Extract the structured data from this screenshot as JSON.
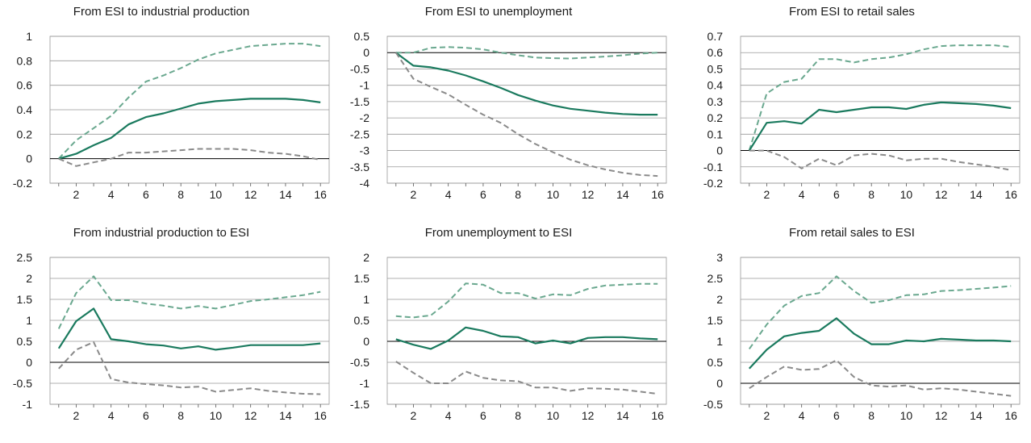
{
  "colors": {
    "median": "#1a7a5e",
    "upper_band": "#6aa88f",
    "lower_band": "#8a8a8a",
    "grid": "#999999",
    "zero_line": "#000000"
  },
  "chart_data": [
    {
      "type": "line",
      "title": "From ESI to industrial production",
      "x": [
        1,
        2,
        3,
        4,
        5,
        6,
        7,
        8,
        9,
        10,
        11,
        12,
        13,
        14,
        15,
        16
      ],
      "x_ticks": [
        2,
        4,
        6,
        8,
        10,
        12,
        14,
        16
      ],
      "y_ticks": [
        -0.2,
        0,
        0.2,
        0.4,
        0.6,
        0.8,
        1
      ],
      "y_tick_labels": [
        "-0.2",
        "0",
        "0.2",
        "0.4",
        "0.6",
        "0.8",
        "1"
      ],
      "ylim": [
        -0.2,
        1
      ],
      "series": [
        {
          "role": "upper",
          "style": "dashed",
          "values": [
            0,
            0.15,
            0.25,
            0.35,
            0.5,
            0.63,
            0.68,
            0.74,
            0.81,
            0.86,
            0.89,
            0.92,
            0.93,
            0.94,
            0.94,
            0.92
          ]
        },
        {
          "role": "median",
          "style": "solid",
          "values": [
            0,
            0.04,
            0.11,
            0.17,
            0.28,
            0.34,
            0.37,
            0.41,
            0.45,
            0.47,
            0.48,
            0.49,
            0.49,
            0.49,
            0.48,
            0.46
          ]
        },
        {
          "role": "lower",
          "style": "dashed",
          "values": [
            0,
            -0.06,
            -0.03,
            0,
            0.05,
            0.05,
            0.06,
            0.07,
            0.08,
            0.08,
            0.08,
            0.07,
            0.05,
            0.04,
            0.02,
            -0.01
          ]
        }
      ]
    },
    {
      "type": "line",
      "title": "From ESI to unemployment",
      "x": [
        1,
        2,
        3,
        4,
        5,
        6,
        7,
        8,
        9,
        10,
        11,
        12,
        13,
        14,
        15,
        16
      ],
      "x_ticks": [
        2,
        4,
        6,
        8,
        10,
        12,
        14,
        16
      ],
      "y_ticks": [
        -4,
        -3.5,
        -3,
        -2.5,
        -2,
        -1.5,
        -1,
        -0.5,
        0,
        0.5
      ],
      "y_tick_labels": [
        "-4",
        "-3.5",
        "-3",
        "-2.5",
        "-2",
        "-1.5",
        "-1",
        "-0.5",
        "0",
        "0.5"
      ],
      "ylim": [
        -4,
        0.5
      ],
      "series": [
        {
          "role": "upper",
          "style": "dashed",
          "values": [
            0,
            0,
            0.15,
            0.17,
            0.15,
            0.1,
            0,
            -0.08,
            -0.15,
            -0.17,
            -0.18,
            -0.15,
            -0.12,
            -0.08,
            -0.03,
            0
          ]
        },
        {
          "role": "median",
          "style": "solid",
          "values": [
            0,
            -0.4,
            -0.45,
            -0.55,
            -0.7,
            -0.88,
            -1.08,
            -1.3,
            -1.47,
            -1.62,
            -1.72,
            -1.78,
            -1.84,
            -1.88,
            -1.9,
            -1.9
          ]
        },
        {
          "role": "lower",
          "style": "dashed",
          "values": [
            0,
            -0.8,
            -1.05,
            -1.28,
            -1.6,
            -1.9,
            -2.15,
            -2.5,
            -2.8,
            -3.05,
            -3.28,
            -3.45,
            -3.58,
            -3.68,
            -3.75,
            -3.78
          ]
        }
      ]
    },
    {
      "type": "line",
      "title": "From ESI to retail sales",
      "x": [
        1,
        2,
        3,
        4,
        5,
        6,
        7,
        8,
        9,
        10,
        11,
        12,
        13,
        14,
        15,
        16
      ],
      "x_ticks": [
        2,
        4,
        6,
        8,
        10,
        12,
        14,
        16
      ],
      "y_ticks": [
        -0.2,
        -0.1,
        0,
        0.1,
        0.2,
        0.3,
        0.4,
        0.5,
        0.6,
        0.7
      ],
      "y_tick_labels": [
        "-0.2",
        "-0.1",
        "0",
        "0.1",
        "0.2",
        "0.3",
        "0.4",
        "0.5",
        "0.6",
        "0.7"
      ],
      "ylim": [
        -0.2,
        0.7
      ],
      "series": [
        {
          "role": "upper",
          "style": "dashed",
          "values": [
            0,
            0.35,
            0.42,
            0.44,
            0.56,
            0.56,
            0.54,
            0.56,
            0.57,
            0.59,
            0.62,
            0.64,
            0.645,
            0.645,
            0.645,
            0.635
          ]
        },
        {
          "role": "median",
          "style": "solid",
          "values": [
            0,
            0.17,
            0.18,
            0.165,
            0.25,
            0.235,
            0.25,
            0.265,
            0.265,
            0.255,
            0.28,
            0.295,
            0.29,
            0.285,
            0.275,
            0.26
          ]
        },
        {
          "role": "lower",
          "style": "dashed",
          "values": [
            0,
            0,
            -0.04,
            -0.11,
            -0.05,
            -0.09,
            -0.03,
            -0.02,
            -0.03,
            -0.06,
            -0.05,
            -0.05,
            -0.07,
            -0.085,
            -0.1,
            -0.12
          ]
        }
      ]
    },
    {
      "type": "line",
      "title": "From industrial production to ESI",
      "x": [
        1,
        2,
        3,
        4,
        5,
        6,
        7,
        8,
        9,
        10,
        11,
        12,
        13,
        14,
        15,
        16
      ],
      "x_ticks": [
        2,
        4,
        6,
        8,
        10,
        12,
        14,
        16
      ],
      "y_ticks": [
        -1,
        -0.5,
        0,
        0.5,
        1,
        1.5,
        2,
        2.5
      ],
      "y_tick_labels": [
        "-1",
        "-0.5",
        "0",
        "0.5",
        "1",
        "1.5",
        "2",
        "2.5"
      ],
      "ylim": [
        -1,
        2.5
      ],
      "series": [
        {
          "role": "upper",
          "style": "dashed",
          "values": [
            0.8,
            1.65,
            2.05,
            1.48,
            1.48,
            1.4,
            1.35,
            1.28,
            1.34,
            1.28,
            1.37,
            1.46,
            1.5,
            1.55,
            1.6,
            1.68
          ]
        },
        {
          "role": "median",
          "style": "solid",
          "values": [
            0.33,
            0.98,
            1.28,
            0.55,
            0.5,
            0.43,
            0.4,
            0.33,
            0.38,
            0.3,
            0.35,
            0.41,
            0.41,
            0.41,
            0.41,
            0.45
          ]
        },
        {
          "role": "lower",
          "style": "dashed",
          "values": [
            -0.15,
            0.3,
            0.48,
            -0.4,
            -0.48,
            -0.52,
            -0.55,
            -0.6,
            -0.58,
            -0.7,
            -0.66,
            -0.62,
            -0.68,
            -0.72,
            -0.75,
            -0.76
          ]
        }
      ]
    },
    {
      "type": "line",
      "title": "From unemployment to ESI",
      "x": [
        1,
        2,
        3,
        4,
        5,
        6,
        7,
        8,
        9,
        10,
        11,
        12,
        13,
        14,
        15,
        16
      ],
      "x_ticks": [
        2,
        4,
        6,
        8,
        10,
        12,
        14,
        16
      ],
      "y_ticks": [
        -1.5,
        -1,
        -0.5,
        0,
        0.5,
        1,
        1.5,
        2
      ],
      "y_tick_labels": [
        "-1.5",
        "-1",
        "-0.5",
        "0",
        "0.5",
        "1",
        "1.5",
        "2"
      ],
      "ylim": [
        -1.5,
        2
      ],
      "series": [
        {
          "role": "upper",
          "style": "dashed",
          "values": [
            0.6,
            0.57,
            0.62,
            0.95,
            1.38,
            1.35,
            1.15,
            1.15,
            1.02,
            1.12,
            1.1,
            1.25,
            1.33,
            1.35,
            1.37,
            1.37
          ]
        },
        {
          "role": "median",
          "style": "solid",
          "values": [
            0.05,
            -0.08,
            -0.18,
            0.02,
            0.33,
            0.25,
            0.12,
            0.1,
            -0.05,
            0.02,
            -0.05,
            0.08,
            0.1,
            0.1,
            0.07,
            0.05
          ]
        },
        {
          "role": "lower",
          "style": "dashed",
          "values": [
            -0.48,
            -0.75,
            -1,
            -1,
            -0.72,
            -0.87,
            -0.93,
            -0.95,
            -1.1,
            -1.1,
            -1.18,
            -1.12,
            -1.13,
            -1.15,
            -1.2,
            -1.25
          ]
        }
      ]
    },
    {
      "type": "line",
      "title": "From retail sales to ESI",
      "x": [
        1,
        2,
        3,
        4,
        5,
        6,
        7,
        8,
        9,
        10,
        11,
        12,
        13,
        14,
        15,
        16
      ],
      "x_ticks": [
        2,
        4,
        6,
        8,
        10,
        12,
        14,
        16
      ],
      "y_ticks": [
        -0.5,
        0,
        0.5,
        1,
        1.5,
        2,
        2.5,
        3
      ],
      "y_tick_labels": [
        "-0.5",
        "0",
        "0.5",
        "1",
        "1.5",
        "2",
        "2.5",
        "3"
      ],
      "ylim": [
        -0.5,
        3
      ],
      "series": [
        {
          "role": "upper",
          "style": "dashed",
          "values": [
            0.82,
            1.4,
            1.85,
            2.08,
            2.15,
            2.55,
            2.2,
            1.92,
            1.98,
            2.1,
            2.12,
            2.2,
            2.22,
            2.25,
            2.28,
            2.32
          ]
        },
        {
          "role": "median",
          "style": "solid",
          "values": [
            0.35,
            0.8,
            1.12,
            1.2,
            1.25,
            1.55,
            1.18,
            0.93,
            0.93,
            1.02,
            1.0,
            1.06,
            1.04,
            1.02,
            1.02,
            1.0
          ]
        },
        {
          "role": "lower",
          "style": "dashed",
          "values": [
            -0.12,
            0.15,
            0.4,
            0.32,
            0.34,
            0.55,
            0.15,
            -0.05,
            -0.08,
            -0.05,
            -0.15,
            -0.12,
            -0.15,
            -0.2,
            -0.25,
            -0.3
          ]
        }
      ]
    }
  ]
}
